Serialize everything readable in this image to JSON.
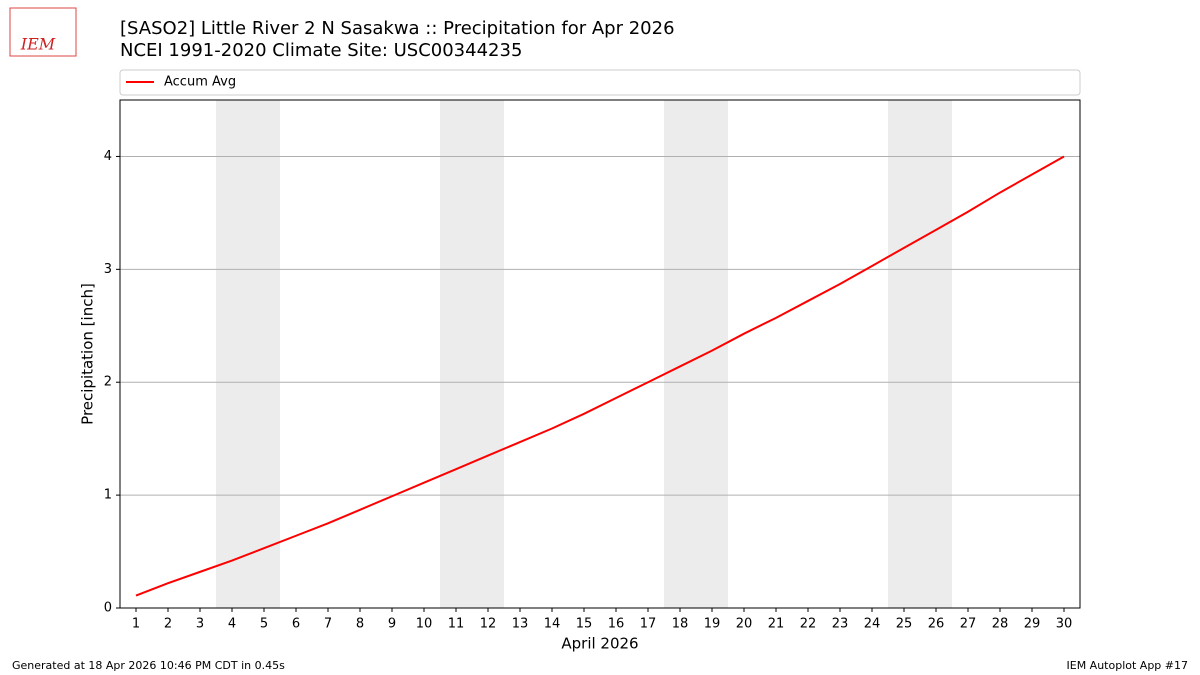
{
  "chart_data": {
    "type": "line",
    "logo_text": "IEM",
    "title": "[SASO2] Little River 2 N Sasakwa :: Precipitation for Apr 2026",
    "subtitle": "NCEI 1991-2020 Climate Site: USC00344235",
    "xlabel": "April 2026",
    "ylabel": "Precipitation [inch]",
    "x": [
      1,
      2,
      3,
      4,
      5,
      6,
      7,
      8,
      9,
      10,
      11,
      12,
      13,
      14,
      15,
      16,
      17,
      18,
      19,
      20,
      21,
      22,
      23,
      24,
      25,
      26,
      27,
      28,
      29,
      30
    ],
    "series": [
      {
        "name": "Accum Avg",
        "color": "#ff0000",
        "values": [
          0.11,
          0.22,
          0.32,
          0.42,
          0.53,
          0.64,
          0.75,
          0.87,
          0.99,
          1.11,
          1.23,
          1.35,
          1.47,
          1.59,
          1.72,
          1.86,
          2.0,
          2.14,
          2.28,
          2.43,
          2.57,
          2.72,
          2.87,
          3.03,
          3.19,
          3.35,
          3.51,
          3.68,
          3.84,
          4.0
        ]
      }
    ],
    "weekend_spans": [
      [
        3.5,
        5.5
      ],
      [
        10.5,
        12.5
      ],
      [
        17.5,
        19.5
      ],
      [
        24.5,
        26.5
      ]
    ],
    "xlim": [
      0.5,
      30.5
    ],
    "xticks": [
      1,
      2,
      3,
      4,
      5,
      6,
      7,
      8,
      9,
      10,
      11,
      12,
      13,
      14,
      15,
      16,
      17,
      18,
      19,
      20,
      21,
      22,
      23,
      24,
      25,
      26,
      27,
      28,
      29,
      30
    ],
    "ylim": [
      0,
      4.5
    ],
    "yticks": [
      0,
      1,
      2,
      3,
      4
    ],
    "grid": true,
    "legend": "top",
    "footer_left": "Generated at 18 Apr 2026 10:46 PM CDT in 0.45s",
    "footer_right": "IEM Autoplot App #17"
  }
}
